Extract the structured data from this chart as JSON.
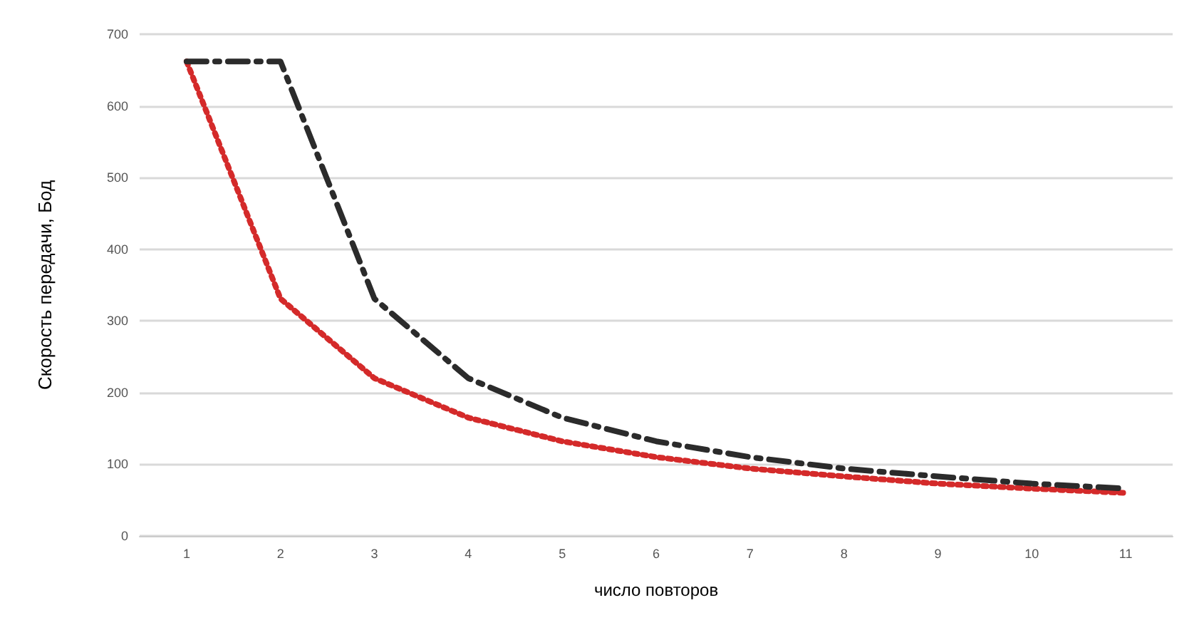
{
  "chart_data": {
    "type": "line",
    "xlabel": "число повторов",
    "ylabel": "Скорость передачи, Бод",
    "categories": [
      "1",
      "2",
      "3",
      "4",
      "5",
      "6",
      "7",
      "8",
      "9",
      "10",
      "11"
    ],
    "series": [
      {
        "color": "#d42a2a",
        "line_style": "dotted",
        "values": [
          662,
          331,
          220,
          165,
          132,
          110,
          94,
          83,
          73,
          66,
          60
        ]
      },
      {
        "color": "#2b2b2b",
        "line_style": "dashed",
        "values": [
          662,
          662,
          331,
          220,
          165,
          132,
          110,
          94,
          83,
          73,
          66
        ]
      }
    ],
    "ylim": [
      0,
      700
    ],
    "yticks": [
      0,
      100,
      200,
      300,
      400,
      500,
      600,
      700
    ],
    "grid": "y",
    "marker": "none"
  }
}
